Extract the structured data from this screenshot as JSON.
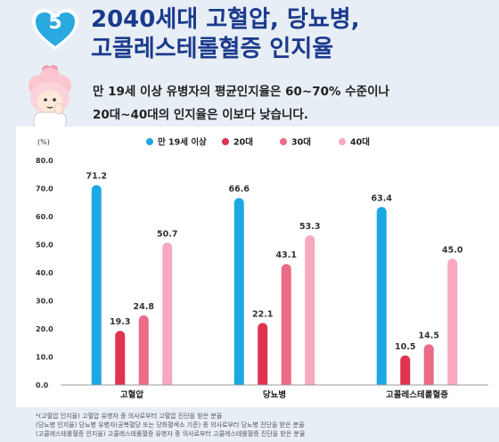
{
  "header": {
    "badge_number": "5",
    "title_line1": "2040세대 고혈압, 당뇨병,",
    "title_line2": "고콜레스테롤혈증 인지율",
    "subtitle_line1": "만 19세 이상 유병자의 평균인지율은 60~70% 수준이나",
    "subtitle_line2": "20대~40대의 인지율은 이보다 낮습니다."
  },
  "colors": {
    "title": "#1a3a8c",
    "badge": "#2aa8e0",
    "series": [
      "#1ba9e1",
      "#e0334f",
      "#ec6b87",
      "#f7a8bf"
    ]
  },
  "chart_data": {
    "type": "bar",
    "title": "",
    "xlabel": "",
    "ylabel": "(%)",
    "ylim": [
      0,
      80
    ],
    "yticks": [
      "0.0",
      "10.0",
      "20.0",
      "30.0",
      "40.0",
      "50.0",
      "60.0",
      "70.0",
      "80.0"
    ],
    "grid": false,
    "legend_position": "top",
    "categories": [
      "고혈압",
      "당뇨병",
      "고콜레스테롤혈증"
    ],
    "series": [
      {
        "name": "만 19세 이상",
        "values": [
          71.2,
          66.6,
          63.4
        ],
        "labels": [
          "71.2",
          "66.6",
          "63.4"
        ]
      },
      {
        "name": "20대",
        "values": [
          19.3,
          22.1,
          10.5
        ],
        "labels": [
          "19.3",
          "22.1",
          "10.5"
        ]
      },
      {
        "name": "30대",
        "values": [
          24.8,
          43.1,
          14.5
        ],
        "labels": [
          "24.8",
          "43.1",
          "14.5"
        ]
      },
      {
        "name": "40대",
        "values": [
          50.7,
          53.3,
          45.0
        ],
        "labels": [
          "50.7",
          "53.3",
          "45.0"
        ]
      }
    ]
  },
  "notes": [
    "*(고혈압 인지율) 고혈압 유병자 중 의사로부터 고혈압 진단을 받은 분율",
    "(당뇨병 인지율) 당뇨병 유병자(공복혈당 또는 당화혈색소 기준) 중 의사로부터 당뇨병 진단을 받은 분율",
    "(고콜레스테롤혈증 인지율) 고콜레스테롤혈증 유병자 중 의사로부터 고콜레스테롤혈증 진단을 받은 분율"
  ]
}
